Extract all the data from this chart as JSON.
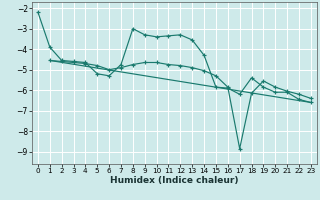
{
  "xlabel": "Humidex (Indice chaleur)",
  "bg_color": "#ceeaea",
  "grid_color": "#ffffff",
  "line_color": "#1a7a6e",
  "xlim": [
    -0.5,
    23.5
  ],
  "ylim": [
    -9.6,
    -1.7
  ],
  "yticks": [
    -9,
    -8,
    -7,
    -6,
    -5,
    -4,
    -3,
    -2
  ],
  "xticks": [
    0,
    1,
    2,
    3,
    4,
    5,
    6,
    7,
    8,
    9,
    10,
    11,
    12,
    13,
    14,
    15,
    16,
    17,
    18,
    19,
    20,
    21,
    22,
    23
  ],
  "series": [
    {
      "x": [
        0,
        1,
        2,
        3,
        4,
        5,
        6,
        7,
        8,
        9,
        10,
        11,
        12,
        13,
        14,
        15,
        16,
        17,
        18,
        19,
        20,
        21,
        22,
        23
      ],
      "y": [
        -2.2,
        -3.9,
        -4.55,
        -4.6,
        -4.65,
        -5.2,
        -5.3,
        -4.75,
        -3.0,
        -3.3,
        -3.4,
        -3.35,
        -3.3,
        -3.55,
        -4.3,
        -5.85,
        -5.9,
        -6.2,
        -5.4,
        -5.85,
        -6.1,
        -6.1,
        -6.45,
        -6.6
      ],
      "marker": true
    },
    {
      "x": [
        1,
        2,
        3,
        4,
        5,
        6,
        7,
        8,
        9,
        10,
        11,
        12,
        13,
        14,
        15,
        16,
        17,
        18,
        19,
        20,
        21,
        22,
        23
      ],
      "y": [
        -4.55,
        -4.6,
        -4.65,
        -4.7,
        -4.8,
        -5.0,
        -4.9,
        -4.75,
        -4.65,
        -4.65,
        -4.75,
        -4.8,
        -4.9,
        -5.05,
        -5.3,
        -5.85,
        -8.85,
        -6.15,
        -5.55,
        -5.85,
        -6.05,
        -6.2,
        -6.4
      ],
      "marker": true
    },
    {
      "x": [
        1,
        23
      ],
      "y": [
        -4.55,
        -6.6
      ],
      "marker": false
    }
  ]
}
